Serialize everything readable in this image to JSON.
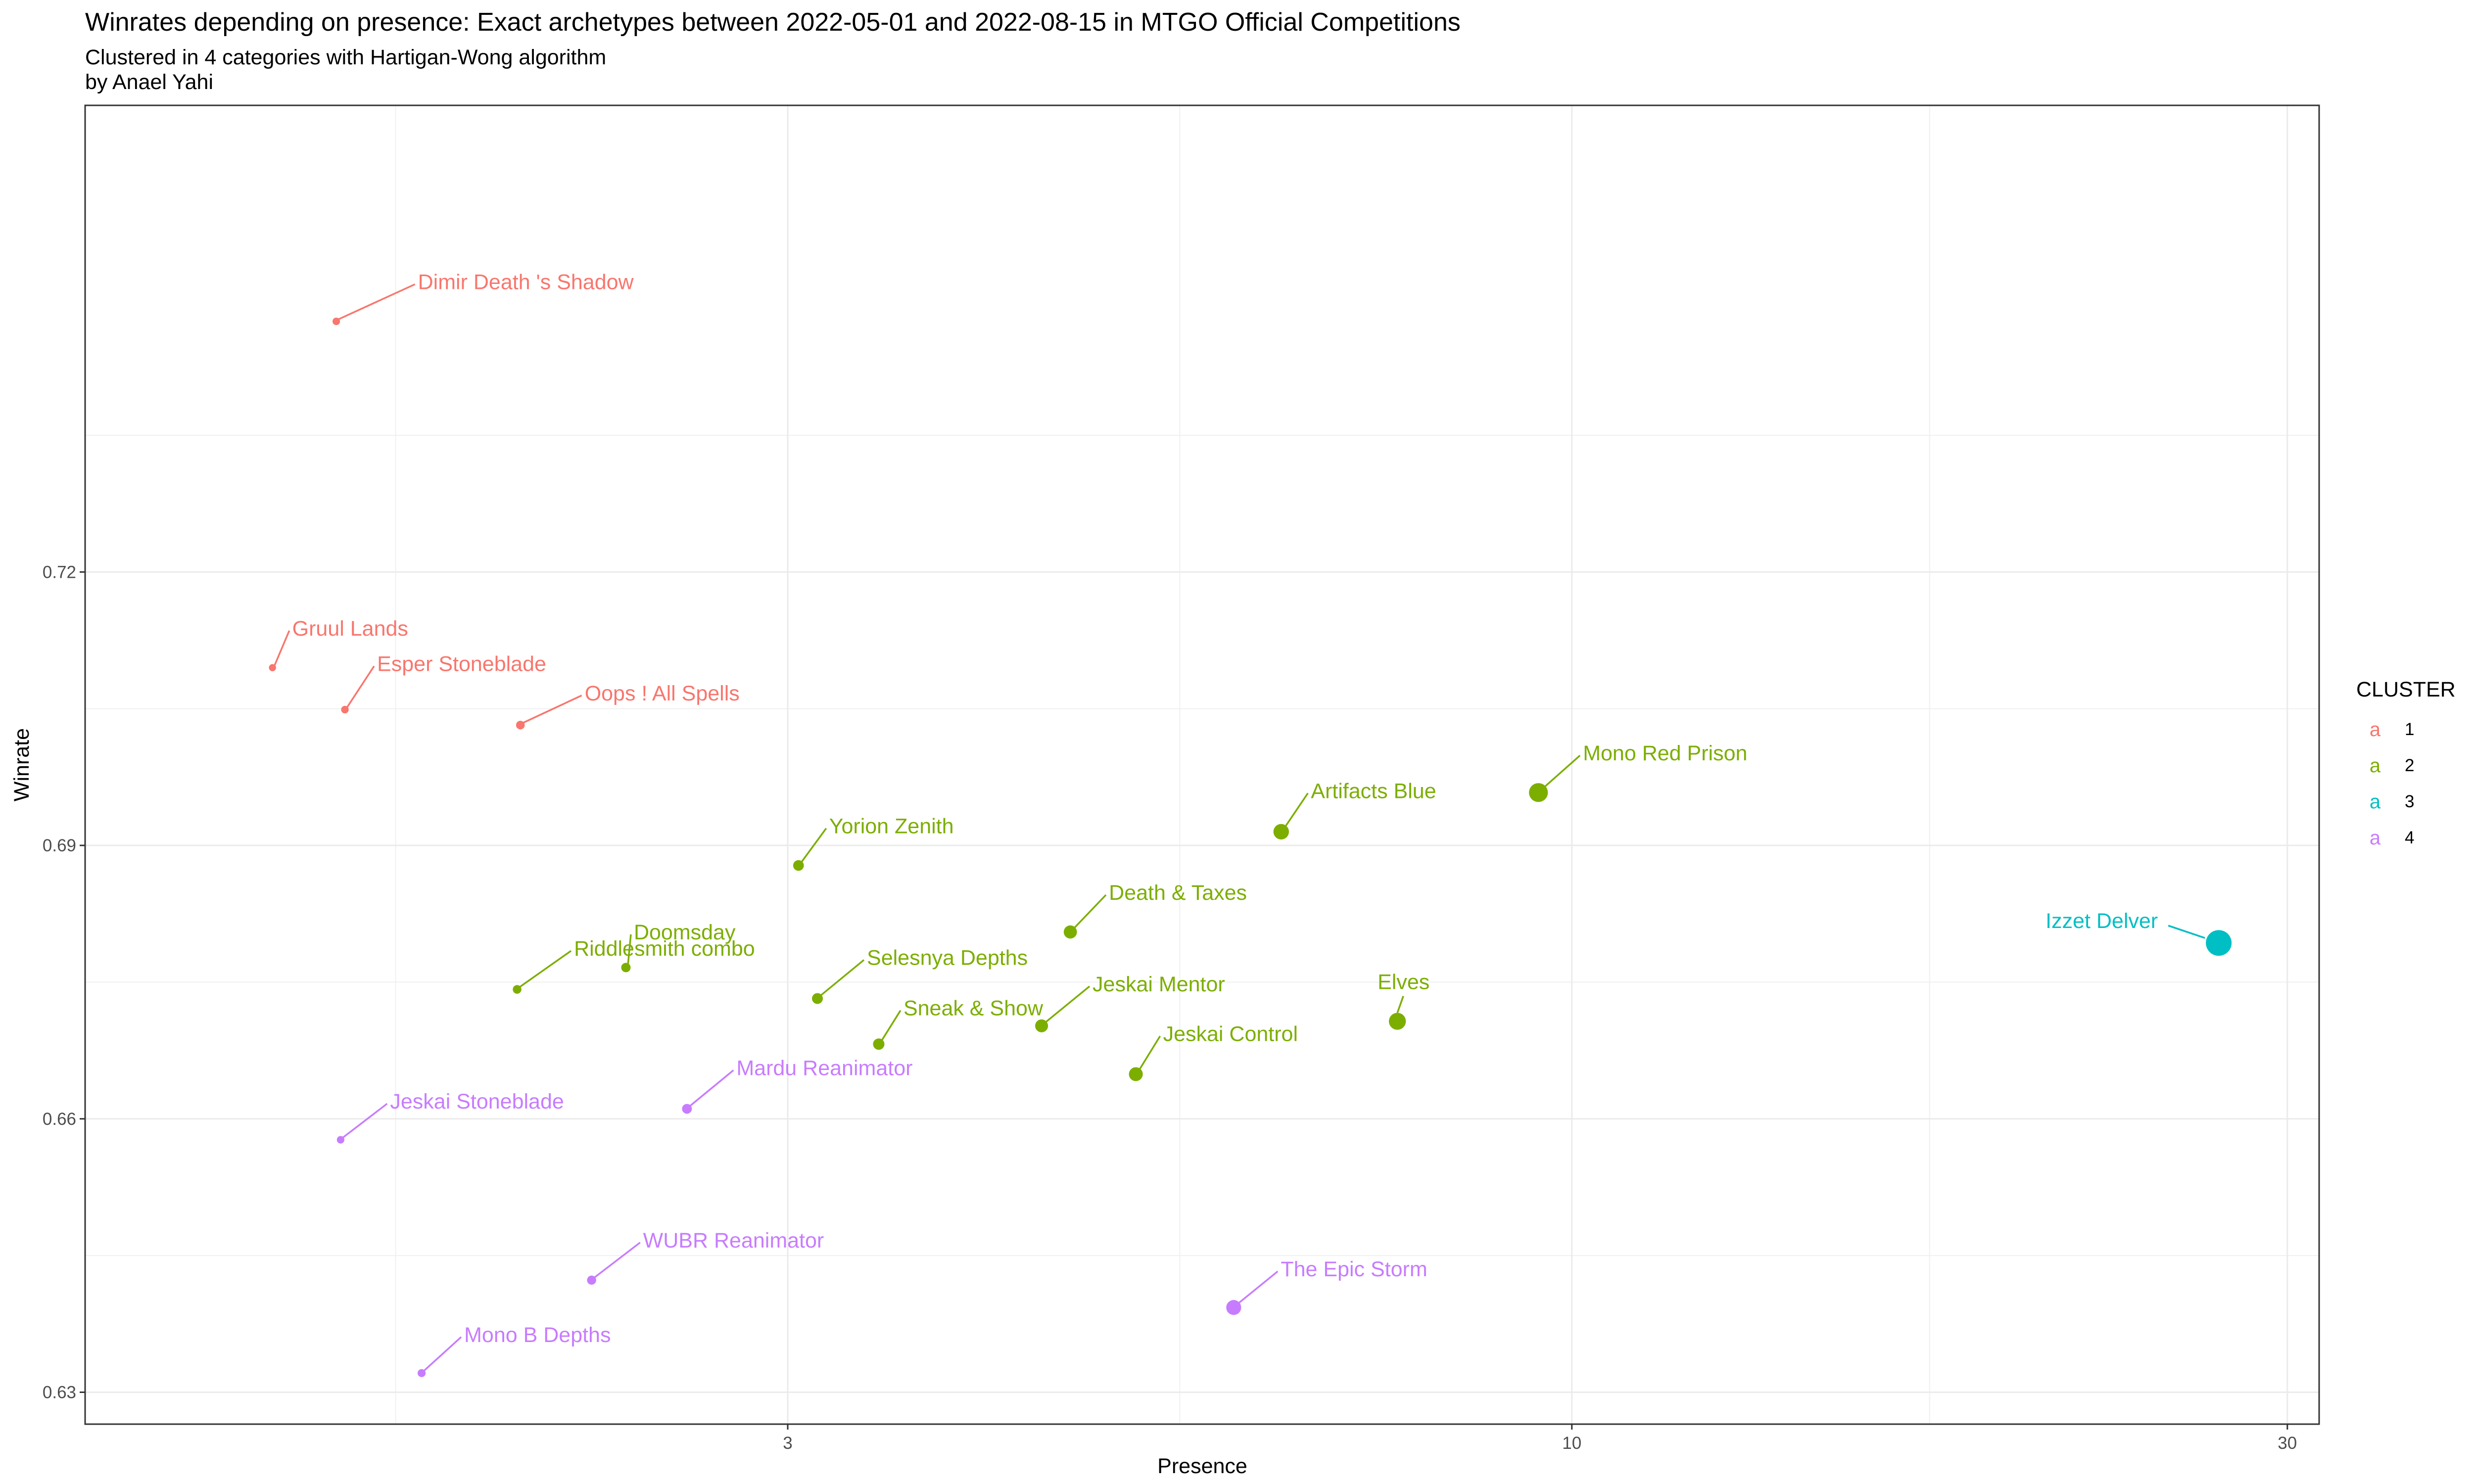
{
  "chart_data": {
    "type": "scatter",
    "title": "Winrates depending on presence: Exact archetypes  between 2022-05-01 and 2022-08-15 in MTGO Official Competitions",
    "subtitle_lines": [
      "Clustered in 4 categories with Hartigan-Wong algorithm",
      "by Anael Yahi"
    ],
    "xlabel": "Presence",
    "ylabel": "Winrate",
    "x_scale": "log10",
    "xlim": [
      1.02,
      31.5
    ],
    "ylim": [
      0.6265,
      0.7712
    ],
    "x_ticks": [
      3,
      10,
      30
    ],
    "x_tick_labels": [
      "3",
      "10",
      "30"
    ],
    "y_ticks": [
      0.63,
      0.66,
      0.69,
      0.72
    ],
    "y_tick_labels": [
      "0.63",
      "0.66",
      "0.69",
      "0.72"
    ],
    "grid": true,
    "legend": {
      "title": "CLUSTER",
      "position": "right",
      "key_glyph": "a",
      "entries": [
        {
          "label": "1",
          "color": "#F8766D"
        },
        {
          "label": "2",
          "color": "#7CAE00"
        },
        {
          "label": "3",
          "color": "#00BFC4"
        },
        {
          "label": "4",
          "color": "#C77CFF"
        }
      ]
    },
    "points": [
      {
        "label": "Dimir Death 's   Shadow",
        "x": 1.5,
        "y": 0.7475,
        "cluster": "1"
      },
      {
        "label": "Gruul Lands",
        "x": 1.36,
        "y": 0.7095,
        "cluster": "1"
      },
      {
        "label": "Esper Stoneblade",
        "x": 1.52,
        "y": 0.7049,
        "cluster": "1"
      },
      {
        "label": "Oops !  All   Spells",
        "x": 1.99,
        "y": 0.7032,
        "cluster": "1"
      },
      {
        "label": "Mono Red Prison",
        "x": 9.5,
        "y": 0.6958,
        "cluster": "2"
      },
      {
        "label": "Artifacts   Blue",
        "x": 6.4,
        "y": 0.6915,
        "cluster": "2"
      },
      {
        "label": "Yorion   Zenith",
        "x": 3.05,
        "y": 0.6878,
        "cluster": "2"
      },
      {
        "label": "Death  &  Taxes",
        "x": 4.63,
        "y": 0.6805,
        "cluster": "2"
      },
      {
        "label": "Doomsday",
        "x": 2.34,
        "y": 0.6766,
        "cluster": "2"
      },
      {
        "label": "Riddlesmith  combo",
        "x": 1.98,
        "y": 0.6742,
        "cluster": "2"
      },
      {
        "label": "Selesnya   Depths",
        "x": 3.14,
        "y": 0.6732,
        "cluster": "2"
      },
      {
        "label": "Jeskai Mentor",
        "x": 4.43,
        "y": 0.6702,
        "cluster": "2"
      },
      {
        "label": "Elves",
        "x": 7.65,
        "y": 0.6707,
        "cluster": "2"
      },
      {
        "label": "Sneak  &  Show",
        "x": 3.45,
        "y": 0.6682,
        "cluster": "2"
      },
      {
        "label": "Jeskai Control",
        "x": 5.12,
        "y": 0.6649,
        "cluster": "2"
      },
      {
        "label": "Izzet Delver",
        "x": 27.0,
        "y": 0.6793,
        "cluster": "3"
      },
      {
        "label": "Mardu Reanimator",
        "x": 2.57,
        "y": 0.6611,
        "cluster": "4"
      },
      {
        "label": "Jeskai Stoneblade",
        "x": 1.51,
        "y": 0.6577,
        "cluster": "4"
      },
      {
        "label": "WUBR Reanimator",
        "x": 2.22,
        "y": 0.6423,
        "cluster": "4"
      },
      {
        "label": "The   Epic   Storm",
        "x": 5.95,
        "y": 0.6393,
        "cluster": "4"
      },
      {
        "label": "Mono B   Depths",
        "x": 1.71,
        "y": 0.6321,
        "cluster": "4"
      }
    ]
  }
}
